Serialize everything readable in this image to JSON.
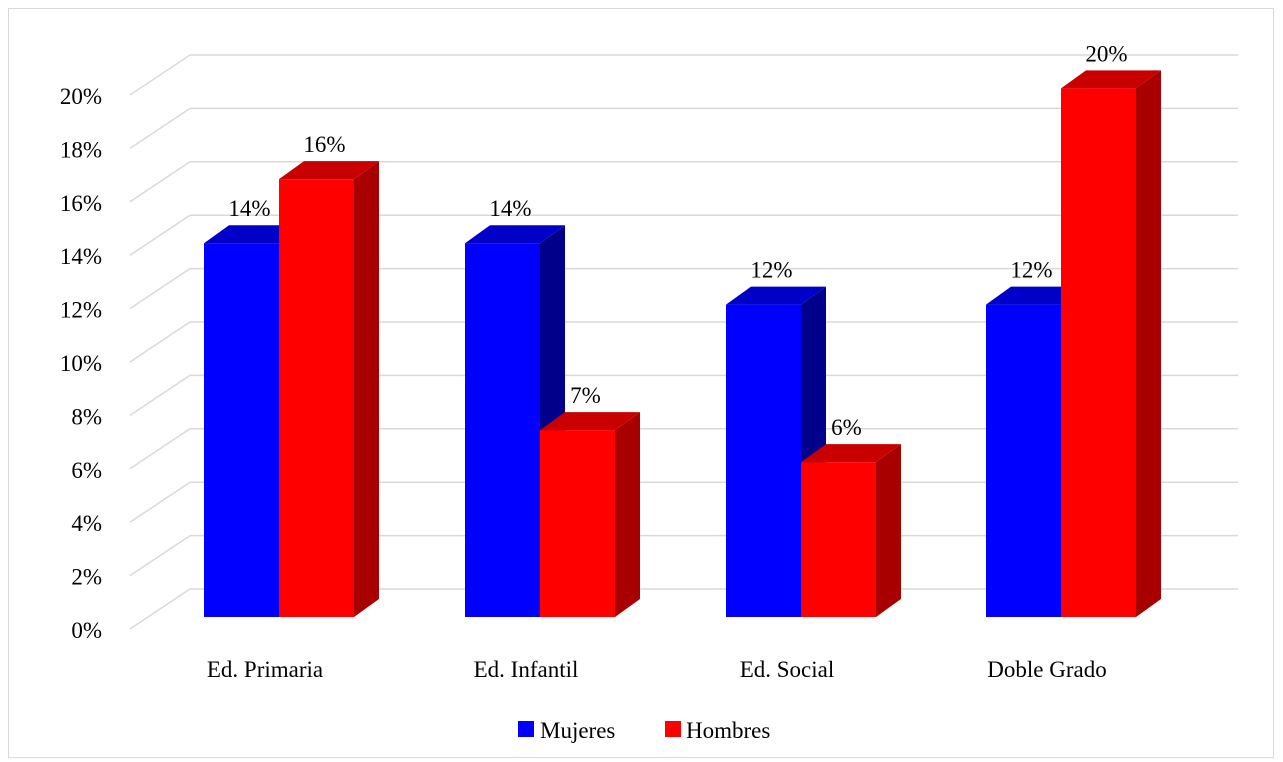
{
  "chart_data": {
    "type": "bar",
    "title": "",
    "xlabel": "",
    "ylabel": "",
    "categories": [
      "Ed. Primaria",
      "Ed. Infantil",
      "Ed. Social",
      "Doble Grado"
    ],
    "series": [
      {
        "name": "Mujeres",
        "values": [
          0.14,
          0.14,
          0.117,
          0.117
        ],
        "labels": [
          "14%",
          "14%",
          "12%",
          "12%"
        ],
        "color": "#0000ff",
        "side_color": "#00008b",
        "top_color": "#0000c8"
      },
      {
        "name": "Hombres",
        "values": [
          0.164,
          0.07,
          0.058,
          0.198
        ],
        "labels": [
          "16%",
          "7%",
          "6%",
          "20%"
        ],
        "color": "#ff0000",
        "side_color": "#a80000",
        "top_color": "#c80000"
      }
    ],
    "ylim": [
      0,
      0.2
    ],
    "yticks": [
      0,
      0.02,
      0.04,
      0.06,
      0.08,
      0.1,
      0.12,
      0.14,
      0.16,
      0.18,
      0.2
    ],
    "ytick_labels": [
      "0%",
      "2%",
      "4%",
      "6%",
      "8%",
      "10%",
      "12%",
      "14%",
      "16%",
      "18%",
      "20%"
    ],
    "grid": true,
    "legend_position": "bottom",
    "chart_style": "3d-clustered-column"
  }
}
